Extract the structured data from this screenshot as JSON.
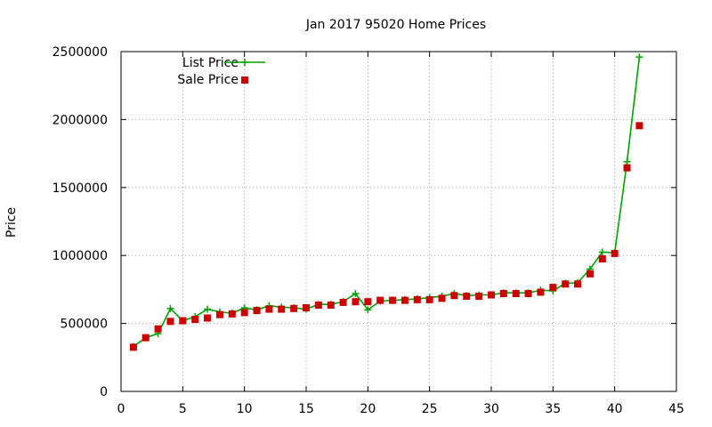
{
  "chart_data": {
    "type": "line",
    "title": "Jan 2017 95020 Home Prices",
    "xlabel": "",
    "ylabel": "Price",
    "xlim": [
      0,
      45
    ],
    "ylim": [
      0,
      2500000
    ],
    "xticks": [
      0,
      5,
      10,
      15,
      20,
      25,
      30,
      35,
      40,
      45
    ],
    "yticks": [
      0,
      500000,
      1000000,
      1500000,
      2000000,
      2500000
    ],
    "grid": true,
    "legend_position": "top-left",
    "series": [
      {
        "name": "List Price",
        "style": "line-plus",
        "color": "#00a000",
        "x": [
          1,
          2,
          3,
          4,
          5,
          6,
          7,
          8,
          9,
          10,
          11,
          12,
          13,
          14,
          15,
          16,
          17,
          18,
          19,
          20,
          21,
          22,
          23,
          24,
          25,
          26,
          27,
          28,
          29,
          30,
          31,
          32,
          33,
          34,
          35,
          36,
          37,
          38,
          39,
          40,
          41,
          42
        ],
        "values": [
          330000,
          395000,
          425000,
          610000,
          520000,
          550000,
          605000,
          585000,
          575000,
          615000,
          600000,
          630000,
          620000,
          615000,
          605000,
          640000,
          640000,
          660000,
          720000,
          600000,
          665000,
          670000,
          675000,
          680000,
          690000,
          700000,
          720000,
          705000,
          710000,
          710000,
          725000,
          725000,
          725000,
          745000,
          740000,
          795000,
          800000,
          900000,
          1025000,
          1020000,
          1690000,
          2460000
        ]
      },
      {
        "name": "Sale Price",
        "style": "square-points",
        "color": "#cc0000",
        "x": [
          1,
          2,
          3,
          4,
          5,
          6,
          7,
          8,
          9,
          10,
          11,
          12,
          13,
          14,
          15,
          16,
          17,
          18,
          19,
          20,
          21,
          22,
          23,
          24,
          25,
          26,
          27,
          28,
          29,
          30,
          31,
          32,
          33,
          34,
          35,
          36,
          37,
          38,
          39,
          40,
          41,
          42
        ],
        "values": [
          325000,
          395000,
          460000,
          515000,
          520000,
          530000,
          540000,
          565000,
          570000,
          580000,
          595000,
          605000,
          605000,
          610000,
          615000,
          635000,
          635000,
          655000,
          660000,
          660000,
          670000,
          670000,
          670000,
          675000,
          675000,
          685000,
          705000,
          700000,
          700000,
          710000,
          720000,
          720000,
          720000,
          730000,
          765000,
          790000,
          790000,
          865000,
          975000,
          1015000,
          1645000,
          1955000
        ]
      }
    ]
  }
}
